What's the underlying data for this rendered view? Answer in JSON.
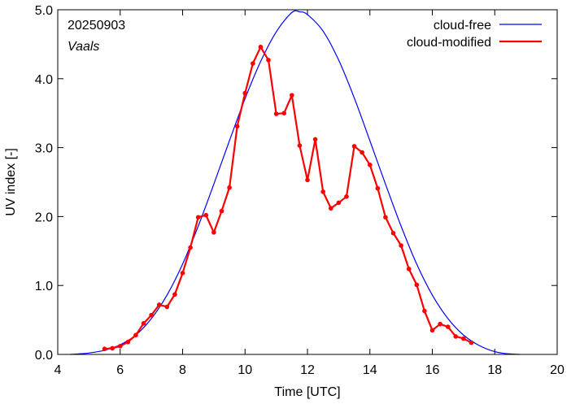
{
  "chart_data": {
    "type": "line",
    "date_label": "20250903",
    "location_label": "Vaals",
    "xlabel": "Time  [UTC]",
    "ylabel": "UV index  [-]",
    "xlim": [
      4,
      20
    ],
    "ylim": [
      0,
      5
    ],
    "xticks": [
      4,
      6,
      8,
      10,
      12,
      14,
      16,
      18,
      20
    ],
    "yticks": [
      0.0,
      1.0,
      2.0,
      3.0,
      4.0,
      5.0
    ],
    "xtick_labels": [
      "4",
      "6",
      "8",
      "10",
      "12",
      "14",
      "16",
      "18",
      "20"
    ],
    "ytick_labels": [
      "0.0",
      "1.0",
      "2.0",
      "3.0",
      "4.0",
      "5.0"
    ],
    "legend_position": "top-right",
    "grid": false,
    "series": [
      {
        "name": "cloud-free",
        "color": "#0000ff",
        "markers": false,
        "x": [
          4.4,
          4.75,
          5.0,
          5.5,
          6.0,
          6.5,
          7.0,
          7.5,
          8.0,
          8.5,
          9.0,
          9.5,
          10.0,
          10.5,
          11.0,
          11.5,
          11.75,
          12.0,
          12.5,
          13.0,
          13.5,
          14.0,
          14.5,
          15.0,
          15.5,
          16.0,
          16.5,
          17.0,
          17.5,
          18.0,
          18.4,
          18.8
        ],
        "y": [
          0.0,
          0.01,
          0.02,
          0.06,
          0.14,
          0.28,
          0.52,
          0.86,
          1.31,
          1.86,
          2.47,
          3.1,
          3.71,
          4.25,
          4.68,
          4.96,
          4.97,
          4.93,
          4.69,
          4.27,
          3.72,
          3.1,
          2.47,
          1.86,
          1.31,
          0.86,
          0.52,
          0.28,
          0.13,
          0.04,
          0.01,
          0.0
        ]
      },
      {
        "name": "cloud-modified",
        "color": "#ff0000",
        "markers": true,
        "x": [
          5.5,
          5.75,
          6.0,
          6.25,
          6.5,
          6.75,
          7.0,
          7.25,
          7.5,
          7.75,
          8.0,
          8.25,
          8.5,
          8.75,
          9.0,
          9.25,
          9.5,
          9.75,
          10.0,
          10.25,
          10.5,
          10.75,
          11.0,
          11.25,
          11.5,
          11.75,
          12.0,
          12.25,
          12.5,
          12.75,
          13.0,
          13.25,
          13.5,
          13.75,
          14.0,
          14.25,
          14.5,
          14.75,
          15.0,
          15.25,
          15.5,
          15.75,
          16.0,
          16.25,
          16.5,
          16.75,
          17.0,
          17.25
        ],
        "y": [
          0.08,
          0.09,
          0.12,
          0.18,
          0.28,
          0.45,
          0.57,
          0.72,
          0.69,
          0.87,
          1.18,
          1.55,
          1.99,
          2.02,
          1.77,
          2.08,
          2.42,
          3.31,
          3.79,
          4.22,
          4.46,
          4.27,
          3.49,
          3.5,
          3.76,
          3.03,
          2.53,
          3.12,
          2.36,
          2.12,
          2.2,
          2.29,
          3.02,
          2.93,
          2.75,
          2.41,
          1.99,
          1.76,
          1.58,
          1.24,
          1.01,
          0.63,
          0.35,
          0.44,
          0.4,
          0.26,
          0.23,
          0.17
        ]
      }
    ]
  }
}
